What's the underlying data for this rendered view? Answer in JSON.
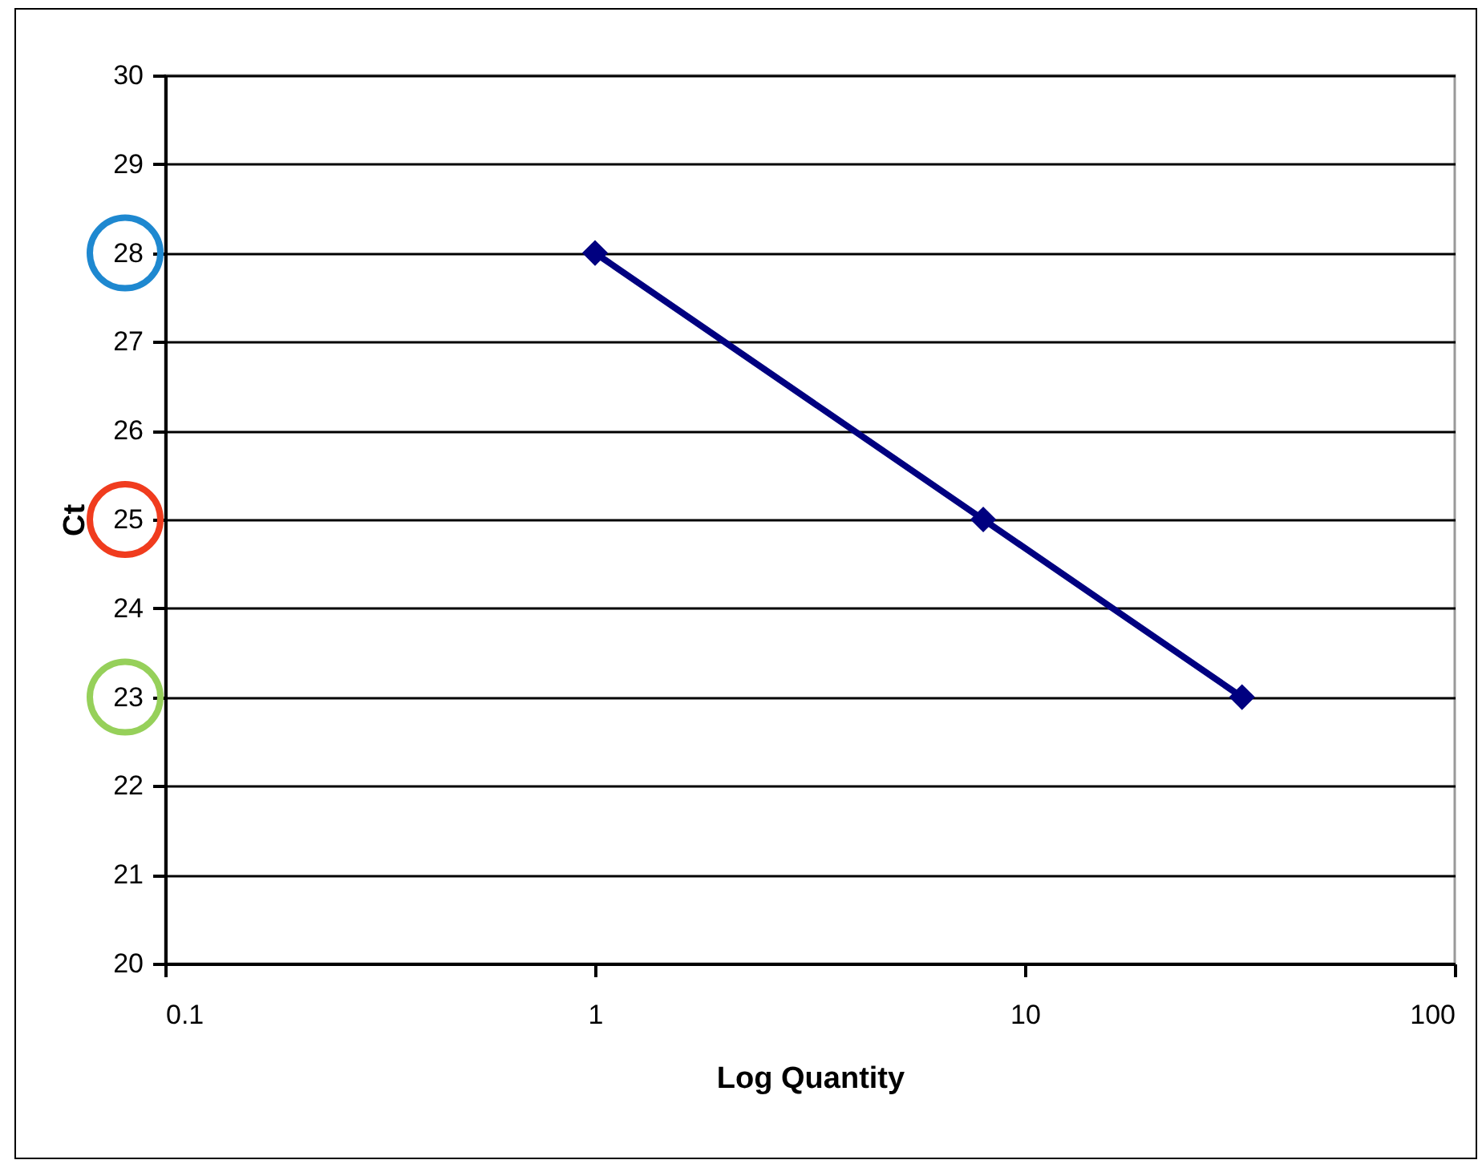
{
  "chart_data": {
    "type": "line",
    "xlabel": "Log Quantity",
    "ylabel": "Ct",
    "x": [
      1,
      8,
      32
    ],
    "series": [
      {
        "color": "#000080",
        "values": [
          28,
          25,
          23
        ]
      }
    ],
    "xlim": [
      0.1,
      100
    ],
    "xticks": [
      0.1,
      1,
      10,
      100
    ],
    "ylim": [
      20,
      30
    ],
    "yticks": [
      20,
      21,
      22,
      23,
      24,
      25,
      26,
      27,
      28,
      29,
      30
    ],
    "log": "x",
    "grid": "y",
    "marker": "diamond",
    "line_style": "solid"
  }
}
